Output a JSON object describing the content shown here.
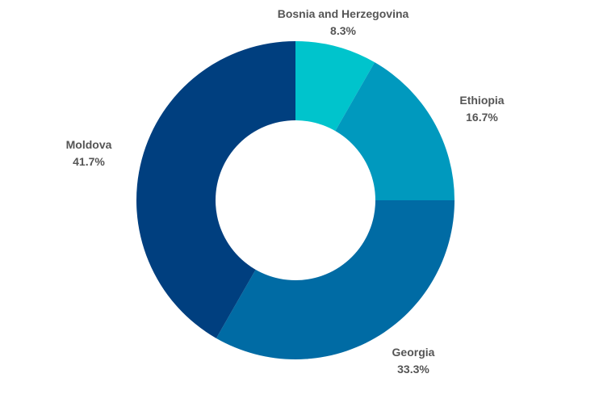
{
  "chart_data": {
    "type": "pie",
    "donut": true,
    "title": "",
    "categories": [
      "Bosnia and Herzegovina",
      "Ethiopia",
      "Georgia",
      "Moldova"
    ],
    "values": [
      8.3,
      16.7,
      33.3,
      41.7
    ],
    "labels": [
      "8.3%",
      "16.7%",
      "33.3%",
      "41.7%"
    ],
    "colors": [
      "#00c4cc",
      "#0099be",
      "#006ba4",
      "#003f7f"
    ],
    "legend": "none"
  }
}
